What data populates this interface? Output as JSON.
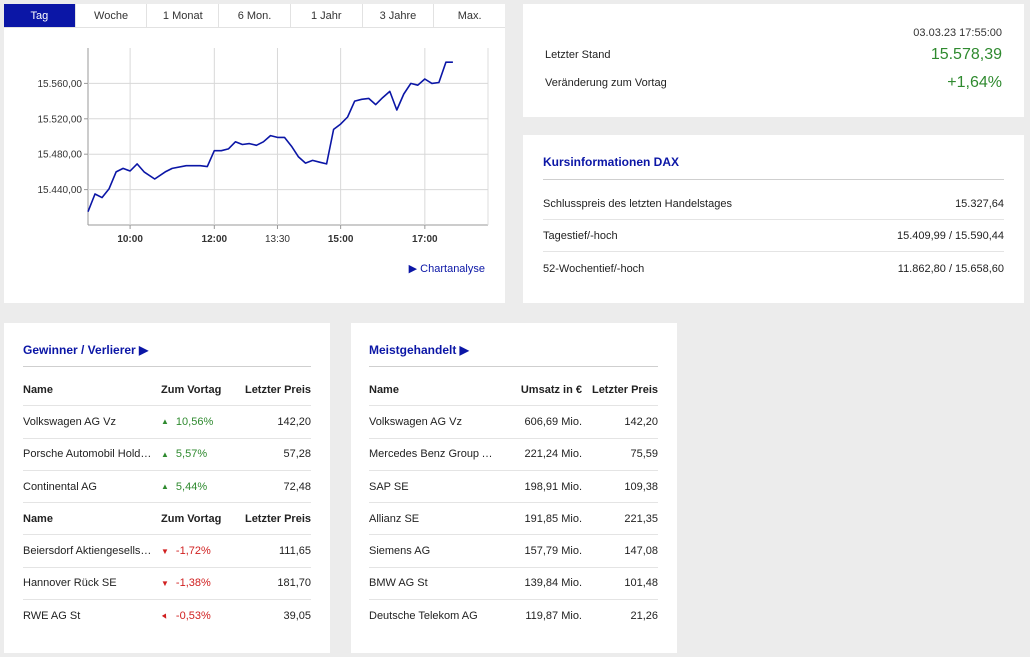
{
  "tabs": [
    "Tag",
    "Woche",
    "1 Monat",
    "6 Mon.",
    "1 Jahr",
    "3 Jahre",
    "Max."
  ],
  "active_tab": 0,
  "chart_link": "▶ Chartanalyse",
  "chart_data": {
    "type": "line",
    "x_ticks": [
      "10:00",
      "12:00",
      "13:30",
      "15:00",
      "17:00"
    ],
    "y_ticks": [
      "15.440,00",
      "15.480,00",
      "15.520,00",
      "15.560,00"
    ],
    "ylim": [
      15400,
      15600
    ],
    "grid": true,
    "series": [
      {
        "color": "#0b16a6",
        "x": [
          "09:00",
          "09:10",
          "09:20",
          "09:30",
          "09:40",
          "09:50",
          "10:00",
          "10:10",
          "10:20",
          "10:35",
          "10:50",
          "11:00",
          "11:20",
          "11:40",
          "11:50",
          "12:00",
          "12:10",
          "12:20",
          "12:30",
          "12:40",
          "12:50",
          "13:00",
          "13:10",
          "13:20",
          "13:30",
          "13:40",
          "13:50",
          "14:00",
          "14:10",
          "14:20",
          "14:30",
          "14:40",
          "14:50",
          "15:00",
          "15:10",
          "15:20",
          "15:30",
          "15:40",
          "15:50",
          "16:00",
          "16:10",
          "16:20",
          "16:30",
          "16:40",
          "16:50",
          "17:00",
          "17:10",
          "17:20",
          "17:30",
          "17:40"
        ],
        "y": [
          15415,
          15435,
          15431,
          15441,
          15460,
          15464,
          15461,
          15469,
          15460,
          15452,
          15460,
          15464,
          15467,
          15467,
          15466,
          15484,
          15484,
          15486,
          15494,
          15491,
          15492,
          15490,
          15494,
          15501,
          15499,
          15499,
          15489,
          15477,
          15470,
          15473,
          15471,
          15469,
          15508,
          15514,
          15522,
          15540,
          15542,
          15543,
          15536,
          15544,
          15551,
          15530,
          15548,
          15560,
          15558,
          15565,
          15560,
          15561,
          15584,
          15584
        ]
      }
    ]
  },
  "summary": {
    "date": "03.03.23 17:55:00",
    "last_label": "Letzter Stand",
    "last_value": "15.578,39",
    "change_label": "Veränderung zum Vortag",
    "change_value": "+1,64%"
  },
  "info": {
    "title": "Kursinformationen DAX",
    "rows": [
      {
        "label": "Schlusspreis des letzten Handelstages",
        "value": "15.327,64"
      },
      {
        "label": "Tagestief/-hoch",
        "value": "15.409,99 / 15.590,44"
      },
      {
        "label": "52-Wochentief/-hoch",
        "value": "11.862,80 / 15.658,60"
      }
    ]
  },
  "gainers": {
    "title": "Gewinner / Verlierer ▶",
    "header": {
      "name": "Name",
      "change": "Zum Vortag",
      "price": "Letzter Preis"
    },
    "winners": [
      {
        "name": "Volkswagen AG Vz",
        "change": "10,56%",
        "price": "142,20"
      },
      {
        "name": "Porsche Automobil Holding SE Vz",
        "change": "5,57%",
        "price": "57,28"
      },
      {
        "name": "Continental AG",
        "change": "5,44%",
        "price": "72,48"
      }
    ],
    "losers": [
      {
        "name": "Beiersdorf Aktiengesellschaft",
        "change": "-1,72%",
        "price": "111,65"
      },
      {
        "name": "Hannover Rück SE",
        "change": "-1,38%",
        "price": "181,70"
      },
      {
        "name": "RWE AG St",
        "change": "-0,53%",
        "price": "39,05"
      }
    ]
  },
  "traded": {
    "title": "Meistgehandelt ▶",
    "header": {
      "name": "Name",
      "volume": "Umsatz in €",
      "price": "Letzter Preis"
    },
    "rows": [
      {
        "name": "Volkswagen AG Vz",
        "volume": "606,69 Mio.",
        "price": "142,20"
      },
      {
        "name": "Mercedes Benz Group AG Namensaktien",
        "volume": "221,24 Mio.",
        "price": "75,59"
      },
      {
        "name": "SAP SE",
        "volume": "198,91 Mio.",
        "price": "109,38"
      },
      {
        "name": "Allianz SE",
        "volume": "191,85 Mio.",
        "price": "221,35"
      },
      {
        "name": "Siemens AG",
        "volume": "157,79 Mio.",
        "price": "147,08"
      },
      {
        "name": "BMW AG St",
        "volume": "139,84 Mio.",
        "price": "101,48"
      },
      {
        "name": "Deutsche Telekom AG",
        "volume": "119,87 Mio.",
        "price": "21,26"
      }
    ]
  },
  "colors": {
    "accent": "#0b16a6",
    "up": "#2f8a2f",
    "down": "#d02020"
  }
}
